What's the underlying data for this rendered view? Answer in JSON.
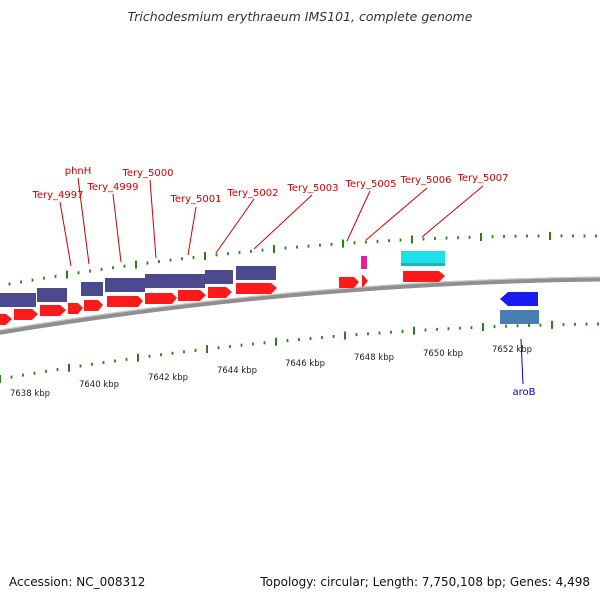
{
  "title": "Trichodesmium erythraeum IMS101, complete genome",
  "footer": {
    "accession": "Accession: NC_008312",
    "stats": "Topology: circular; Length: 7,750,108 bp; Genes: 4,498"
  },
  "map": {
    "backbone_color": "#888888",
    "tick_color": "#2e7d1a",
    "positive_strand_color": "#ff1a1a",
    "cds_strand_color": "#4b4a8f",
    "label_color_top": "#cc0000",
    "label_color_bottom": "#0000cc",
    "kbp_labels": [
      "7638 kbp",
      "7640 kbp",
      "7642 kbp",
      "7644 kbp",
      "7646 kbp",
      "7648 kbp",
      "7650 kbp",
      "7652 kbp"
    ],
    "gene_labels_top": [
      "Tery_4997",
      "phnH",
      "Tery_4999",
      "Tery_5000",
      "Tery_5001",
      "Tery_5002",
      "Tery_5003",
      "Tery_5005",
      "Tery_5006",
      "Tery_5007"
    ],
    "gene_labels_bottom": [
      "aroB"
    ]
  }
}
